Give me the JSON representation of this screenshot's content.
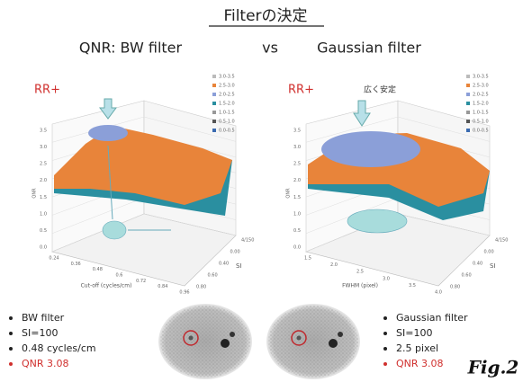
{
  "title": "Filterの決定",
  "comparison": {
    "left": "QNR: BW filter",
    "vs": "vs",
    "right": "Gaussian filter"
  },
  "panels": [
    {
      "label": "RR+",
      "legend": [
        "3.0-3.5",
        "2.5-3.0",
        "2.0-2.5",
        "1.5-2.0",
        "1.0-1.5",
        "0.5-1.0",
        "0.0-0.5"
      ],
      "z_axis_label": "QNR",
      "z_ticks": [
        "3.5",
        "3.0",
        "2.5",
        "2.0",
        "1.5",
        "1.0",
        "0.5",
        "0.0"
      ],
      "x_axis_label": "Cut-off (cycles/cm)",
      "x_ticks": [
        "0.24",
        "0.36",
        "0.48",
        "0.6",
        "0.72",
        "0.84",
        "0.96"
      ],
      "depth_axis_label": "SI",
      "depth_ticks": [
        "4/150",
        "0.00",
        "0.40",
        "0.60",
        "0.80"
      ]
    },
    {
      "label": "RR+",
      "annotation": "広く安定",
      "legend": [
        "3.0-3.5",
        "2.5-3.0",
        "2.0-2.5",
        "1.5-2.0",
        "1.0-1.5",
        "0.5-1.0",
        "0.0-0.5"
      ],
      "z_axis_label": "QNR",
      "z_ticks": [
        "3.5",
        "3.0",
        "2.5",
        "2.0",
        "1.5",
        "1.0",
        "0.5",
        "0.0"
      ],
      "x_axis_label": "FWHM (pixel)",
      "x_ticks": [
        "1.5",
        "2.0",
        "2.5",
        "3.0",
        "3.5",
        "4.0"
      ],
      "depth_axis_label": "SI",
      "depth_ticks": [
        "4/150",
        "0.00",
        "0.40",
        "0.60",
        "0.80"
      ]
    }
  ],
  "left_notes": [
    "BW filter",
    "SI=100",
    "0.48 cycles/cm",
    "QNR 3.08"
  ],
  "right_notes": [
    "Gaussian filter",
    "SI=100",
    "2.5 pixel",
    "QNR 3.08"
  ],
  "caption": "Fig.2"
}
